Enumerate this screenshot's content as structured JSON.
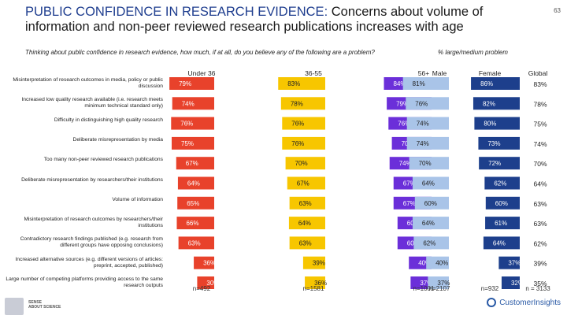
{
  "header": {
    "title_accent": "PUBLIC CONFIDENCE IN RESEARCH EVIDENCE:",
    "title_rest": " Concerns about volume of information and non-peer reviewed research publications increases with age",
    "page_number": "63"
  },
  "question": "Thinking about public confidence in research evidence, how much, if at all, do you believe any of the following are a problem?",
  "scale_label": "% large/medium problem",
  "footer": {
    "brand_line1": "SENSE",
    "brand_line2": "ABOUT SCIENCE",
    "right_brand": "CustomerInsights"
  },
  "colors": {
    "under36": "#e8422b",
    "age36_55": "#f7c600",
    "age56plus": "#6b2fd9",
    "male": "#a9c4e8",
    "female": "#1d3f8c"
  },
  "chart_data": {
    "type": "bar",
    "title": "Public confidence in research evidence",
    "categories": [
      "Misinterpretation of research outcomes in media, policy or public discussion",
      "Increased low quality research available (i.e. research meets minimum technical standard only)",
      "Difficulty in distinguishing high quality research",
      "Deliberate misrepresentation by media",
      "Too many non-peer reviewed research publications",
      "Deliberate misrepresentation by researchers/their institutions",
      "Volume of information",
      "Misinterpretation of research outcomes by researchers/their institutions",
      "Contradictory research findings published (e.g. research from different groups have opposing conclusions)",
      "Increased alternative sources (e.g. different versions of articles: preprint, accepted, published)",
      "Large number of competing platforms providing access to the same research outputs"
    ],
    "series": [
      {
        "name": "Under 36",
        "n": "n=492",
        "values": [
          79,
          74,
          76,
          75,
          67,
          64,
          65,
          66,
          63,
          36,
          30
        ]
      },
      {
        "name": "36-55",
        "n": "n=1581",
        "values": [
          83,
          78,
          76,
          76,
          70,
          67,
          63,
          64,
          63,
          39,
          36
        ]
      },
      {
        "name": "56+",
        "n": "n=1001",
        "values": [
          84,
          79,
          76,
          70,
          74,
          67,
          67,
          60,
          60,
          40,
          37
        ]
      },
      {
        "name": "Male",
        "n": "n=2107",
        "values": [
          81,
          76,
          74,
          74,
          70,
          64,
          60,
          64,
          62,
          40,
          37
        ]
      },
      {
        "name": "Female",
        "n": "n=932",
        "values": [
          86,
          82,
          80,
          73,
          72,
          62,
          60,
          61,
          64,
          37,
          32
        ]
      }
    ],
    "global": {
      "name": "Global",
      "n": "n = 3133",
      "values": [
        83,
        78,
        75,
        74,
        70,
        64,
        63,
        63,
        62,
        39,
        35
      ]
    },
    "xlim": [
      0,
      100
    ],
    "value_suffix": "%"
  }
}
